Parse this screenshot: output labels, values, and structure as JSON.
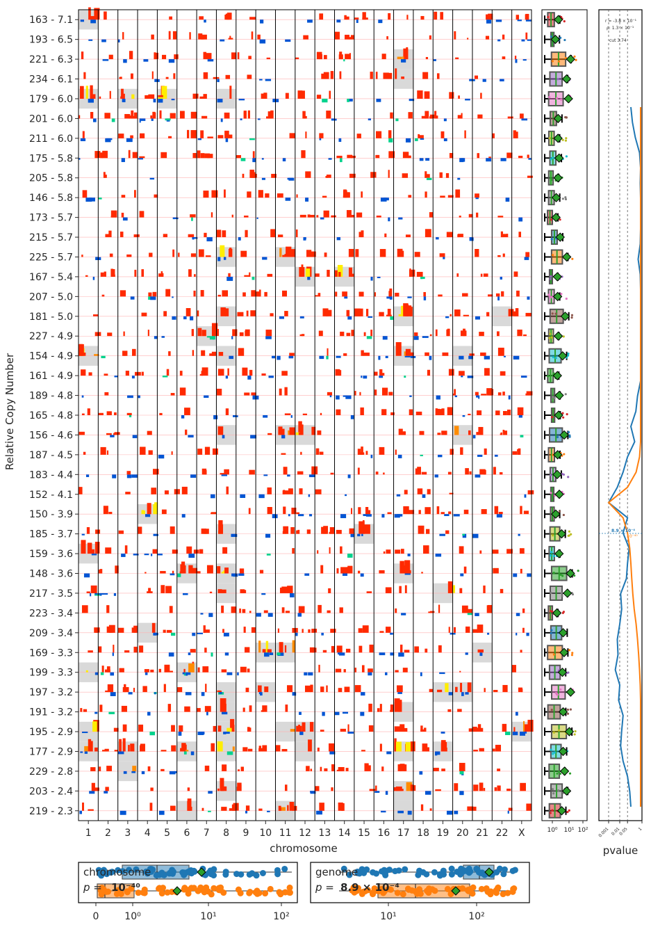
{
  "chart_data": [
    {
      "type": "heatmap",
      "ylabel": "Relative Copy Number",
      "xlabel": "chromosome",
      "chromosomes": [
        "1",
        "2",
        "3",
        "4",
        "5",
        "6",
        "7",
        "8",
        "9",
        "10",
        "11",
        "12",
        "13",
        "14",
        "15",
        "16",
        "17",
        "18",
        "19",
        "20",
        "21",
        "22",
        "X"
      ],
      "rows": [
        "163 - 7.1",
        "193 - 6.5",
        "221 - 6.3",
        "234 - 6.1",
        "179 - 6.0",
        "201 - 6.0",
        "211 - 6.0",
        "175 - 5.8",
        "205 - 5.8",
        "146 - 5.8",
        "173 - 5.7",
        "215 - 5.7",
        "225 - 5.7",
        "167 - 5.4",
        "207 - 5.0",
        "181 - 5.0",
        "227 - 4.9",
        "154 - 4.9",
        "161 - 4.9",
        "189 - 4.8",
        "165 - 4.8",
        "156 - 4.6",
        "187 - 4.5",
        "183 - 4.4",
        "152 - 4.1",
        "150 - 3.9",
        "185 - 3.7",
        "159 - 3.6",
        "148 - 3.6",
        "217 - 3.5",
        "223 - 3.4",
        "209 - 3.4",
        "169 - 3.3",
        "199 - 3.3",
        "197 - 3.2",
        "191 - 3.2",
        "195 - 2.9",
        "177 - 2.9",
        "229 - 2.8",
        "203 - 2.4",
        "219 - 2.3"
      ],
      "highlights": [
        [
          0,
          0
        ],
        [
          2,
          16
        ],
        [
          3,
          16
        ],
        [
          4,
          0
        ],
        [
          4,
          2
        ],
        [
          4,
          4
        ],
        [
          4,
          7
        ],
        [
          12,
          7
        ],
        [
          12,
          10
        ],
        [
          13,
          11
        ],
        [
          13,
          13
        ],
        [
          15,
          7
        ],
        [
          15,
          16
        ],
        [
          15,
          21
        ],
        [
          16,
          6
        ],
        [
          17,
          0
        ],
        [
          17,
          7
        ],
        [
          17,
          16
        ],
        [
          17,
          19
        ],
        [
          21,
          7
        ],
        [
          21,
          10
        ],
        [
          21,
          11
        ],
        [
          21,
          19
        ],
        [
          25,
          3
        ],
        [
          26,
          7
        ],
        [
          26,
          14
        ],
        [
          27,
          0
        ],
        [
          28,
          5
        ],
        [
          28,
          7
        ],
        [
          28,
          16
        ],
        [
          29,
          7
        ],
        [
          29,
          18
        ],
        [
          31,
          3
        ],
        [
          32,
          9
        ],
        [
          32,
          10
        ],
        [
          32,
          20
        ],
        [
          33,
          0
        ],
        [
          33,
          5
        ],
        [
          34,
          7
        ],
        [
          34,
          9
        ],
        [
          34,
          18
        ],
        [
          34,
          19
        ],
        [
          35,
          7
        ],
        [
          35,
          16
        ],
        [
          36,
          0
        ],
        [
          36,
          7
        ],
        [
          36,
          10
        ],
        [
          36,
          11
        ],
        [
          36,
          22
        ],
        [
          37,
          0
        ],
        [
          37,
          2
        ],
        [
          37,
          5
        ],
        [
          37,
          7
        ],
        [
          37,
          11
        ],
        [
          37,
          16
        ],
        [
          37,
          18
        ],
        [
          38,
          2
        ],
        [
          39,
          7
        ],
        [
          39,
          16
        ],
        [
          40,
          5
        ],
        [
          40,
          10
        ],
        [
          40,
          16
        ]
      ]
    },
    {
      "type": "box",
      "xscale": "log",
      "xticks": [
        "10⁰",
        "10¹",
        "10²"
      ]
    },
    {
      "type": "line",
      "xlabel": "pvalue",
      "xscale": "log",
      "xticks": [
        "0.001",
        "0.01",
        "0.05",
        "1"
      ],
      "annotations": [
        "r = -3.8 × 10⁻¹",
        "ρ: 1.3 × 10⁻¹",
        "cut 3.74",
        "8.9 × 10⁻⁴",
        "10⁻⁴⁰"
      ],
      "series": [
        {
          "color": "#1f77b4",
          "x": [
            0.1,
            0.14,
            0.25,
            0.6,
            0.82,
            0.7,
            0.85,
            0.9,
            0.82,
            0.7,
            0.45,
            0.7,
            0.9,
            0.92,
            0.95,
            0.85,
            0.92,
            0.95,
            0.8,
            0.4,
            0.28,
            0.1,
            0.22,
            0.05,
            0.02,
            0.006,
            0.001,
            0.05,
            0.02,
            0.07,
            0.05,
            0.04,
            0.012,
            0.015,
            0.01,
            0.006,
            0.007,
            0.004,
            0.01,
            0.008,
            0.02,
            0.015,
            0.012,
            0.02,
            0.05,
            0.08,
            0.1
          ],
          "y": [
            0,
            1,
            2,
            3,
            4,
            5,
            6,
            7,
            8,
            9,
            10,
            11,
            12,
            13,
            14,
            15,
            16,
            17,
            18,
            19,
            20,
            21,
            22,
            23,
            24,
            25,
            26,
            27,
            28,
            29,
            30,
            31,
            32,
            33,
            34,
            35,
            36,
            37,
            38,
            39,
            40,
            41,
            42,
            43,
            44,
            45,
            46
          ]
        },
        {
          "color": "#ff7f0e",
          "x": [
            0.9,
            0.9,
            0.9,
            0.9,
            0.9,
            0.9,
            0.9,
            0.9,
            0.9,
            0.9,
            0.9,
            0.9,
            0.92,
            0.95,
            0.9,
            0.92,
            0.95,
            0.92,
            0.9,
            0.85,
            0.9,
            0.85,
            0.8,
            0.6,
            0.3,
            0.05,
            0.001,
            0.02,
            0.05,
            0.08,
            0.1,
            0.12,
            0.15,
            0.2,
            0.3,
            0.4,
            0.5,
            0.6,
            0.7,
            0.8,
            0.85,
            0.9,
            0.92,
            0.95,
            0.95,
            0.95,
            0.95
          ],
          "y": [
            0,
            1,
            2,
            3,
            4,
            5,
            6,
            7,
            8,
            9,
            10,
            11,
            12,
            13,
            14,
            15,
            16,
            17,
            18,
            19,
            20,
            21,
            22,
            23,
            24,
            25,
            26,
            27,
            28,
            29,
            30,
            31,
            32,
            33,
            34,
            35,
            36,
            37,
            38,
            39,
            40,
            41,
            42,
            43,
            44,
            45,
            46
          ]
        }
      ]
    },
    {
      "type": "box",
      "xscale": "symlog",
      "xticks": [
        "0",
        "10⁰",
        "10¹",
        "10²"
      ],
      "series": [
        {
          "name": "chromosome",
          "color": "#1f77b4"
        }
      ],
      "annotation_label": "p =",
      "annotation_value": "10⁻⁴⁰"
    },
    {
      "type": "box",
      "xscale": "log",
      "xticks": [
        "10¹",
        "10²"
      ],
      "series": [
        {
          "name": "genome",
          "color": "#1f77b4"
        }
      ],
      "annotation_label": "p =",
      "annotation_value": "8.9 × 10⁻⁴"
    }
  ],
  "colors": {
    "gain": "#ff2a00",
    "gain_orange": "#ff8c00",
    "gain_yellow": "#ffee00",
    "loss": "#0055d4",
    "loss_cyan": "#00d28c",
    "highlight": "#d9d9d9",
    "blue": "#1f77b4",
    "orange": "#ff7f0e",
    "mean": "#2ca02c"
  }
}
